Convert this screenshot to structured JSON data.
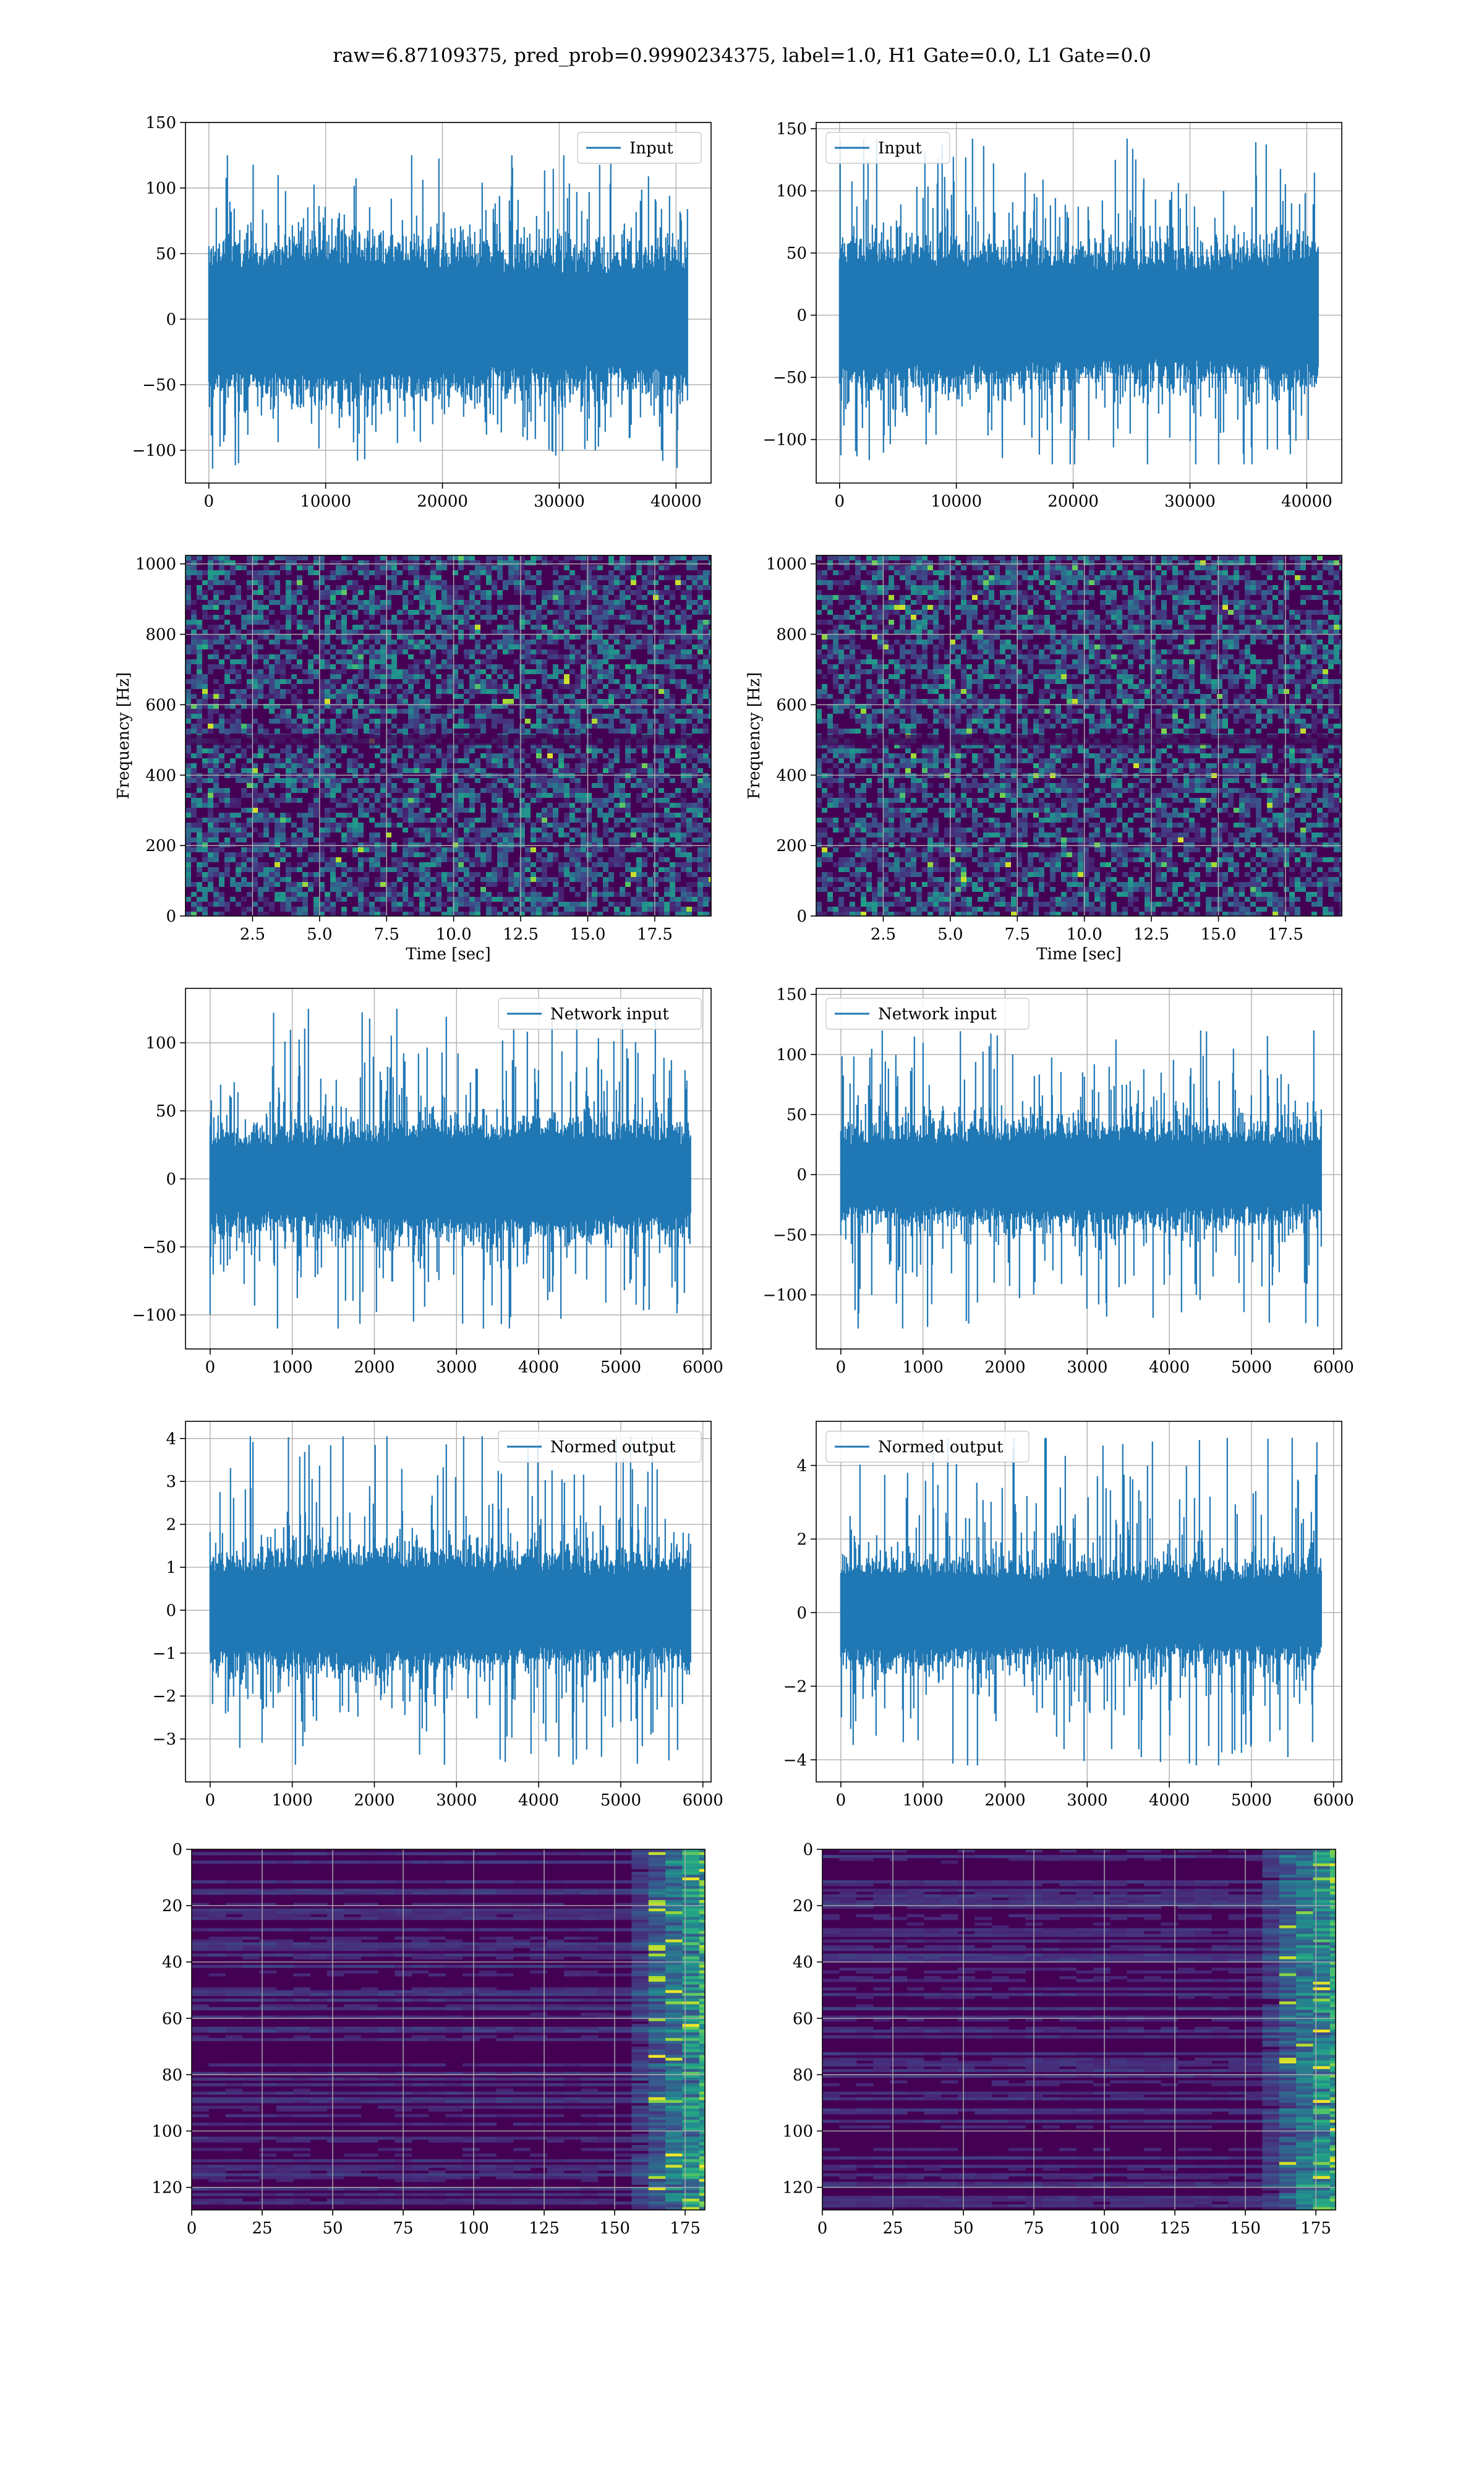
{
  "figure": {
    "suptitle": "raw=6.87109375, pred_prob=0.9990234375, label=1.0, H1 Gate=0.0, L1 Gate=0.0",
    "colors": {
      "series": "#1f77b4",
      "grid": "#b0b0b0",
      "viridis_dark": "#440154",
      "viridis_low": "#472d7b",
      "viridis_mid": "#21918c",
      "viridis_high": "#5ec962",
      "viridis_top": "#fde725"
    }
  },
  "chart_data": [
    {
      "type": "line",
      "name": "input-h1",
      "legend": "Input",
      "legend_loc": "upper right",
      "xlim": [
        -2000,
        43000
      ],
      "ylim": [
        -125,
        150
      ],
      "xticks": [
        0,
        10000,
        20000,
        30000,
        40000
      ],
      "yticks": [
        -100,
        -50,
        0,
        50,
        100,
        150
      ],
      "xlabel": "",
      "ylabel": "",
      "x_range": [
        0,
        40960
      ],
      "band": [
        -40,
        40
      ],
      "extremes": [
        -115,
        125
      ],
      "grid": true
    },
    {
      "type": "line",
      "name": "input-l1",
      "legend": "Input",
      "legend_loc": "upper left",
      "xlim": [
        -2000,
        43000
      ],
      "ylim": [
        -135,
        155
      ],
      "xticks": [
        0,
        10000,
        20000,
        30000,
        40000
      ],
      "yticks": [
        -100,
        -50,
        0,
        50,
        100,
        150
      ],
      "xlabel": "",
      "ylabel": "",
      "x_range": [
        0,
        40960
      ],
      "band": [
        -40,
        40
      ],
      "extremes": [
        -120,
        142
      ],
      "grid": true
    },
    {
      "type": "heatmap",
      "name": "spectrogram-h1",
      "kind": "spectrogram",
      "xlim": [
        0,
        19.6
      ],
      "ylim": [
        0,
        1024
      ],
      "xticks": [
        2.5,
        5.0,
        7.5,
        10.0,
        12.5,
        15.0,
        17.5
      ],
      "yticks": [
        0,
        200,
        400,
        600,
        800,
        1000
      ],
      "xlabel": "Time [sec]",
      "ylabel": "Frequency [Hz]",
      "colormap": "viridis",
      "grid": true
    },
    {
      "type": "heatmap",
      "name": "spectrogram-l1",
      "kind": "spectrogram",
      "xlim": [
        0,
        19.6
      ],
      "ylim": [
        0,
        1024
      ],
      "xticks": [
        2.5,
        5.0,
        7.5,
        10.0,
        12.5,
        15.0,
        17.5
      ],
      "yticks": [
        0,
        200,
        400,
        600,
        800,
        1000
      ],
      "xlabel": "Time [sec]",
      "ylabel": "Frequency [Hz]",
      "colormap": "viridis",
      "grid": true
    },
    {
      "type": "line",
      "name": "network-input-h1",
      "legend": "Network input",
      "legend_loc": "upper right",
      "xlim": [
        -300,
        6100
      ],
      "ylim": [
        -125,
        140
      ],
      "xticks": [
        0,
        1000,
        2000,
        3000,
        4000,
        5000,
        6000
      ],
      "yticks": [
        -100,
        -50,
        0,
        50,
        100
      ],
      "xlabel": "",
      "ylabel": "",
      "x_range": [
        0,
        5850
      ],
      "band": [
        -28,
        28
      ],
      "extremes": [
        -110,
        125
      ],
      "grid": true
    },
    {
      "type": "line",
      "name": "network-input-l1",
      "legend": "Network input",
      "legend_loc": "upper left",
      "xlim": [
        -300,
        6100
      ],
      "ylim": [
        -145,
        155
      ],
      "xticks": [
        0,
        1000,
        2000,
        3000,
        4000,
        5000,
        6000
      ],
      "yticks": [
        -100,
        -50,
        0,
        50,
        100,
        150
      ],
      "xlabel": "",
      "ylabel": "",
      "x_range": [
        0,
        5850
      ],
      "band": [
        -28,
        28
      ],
      "extremes": [
        -128,
        120
      ],
      "grid": true
    },
    {
      "type": "line",
      "name": "normed-output-h1",
      "legend": "Normed output",
      "legend_loc": "upper right",
      "xlim": [
        -300,
        6100
      ],
      "ylim": [
        -4.0,
        4.4
      ],
      "xticks": [
        0,
        1000,
        2000,
        3000,
        4000,
        5000,
        6000
      ],
      "yticks": [
        -3,
        -2,
        -1,
        0,
        1,
        2,
        3,
        4
      ],
      "xlabel": "",
      "ylabel": "",
      "x_range": [
        0,
        5850
      ],
      "band": [
        -0.95,
        0.95
      ],
      "extremes": [
        -3.6,
        4.05
      ],
      "grid": true
    },
    {
      "type": "line",
      "name": "normed-output-l1",
      "legend": "Normed output",
      "legend_loc": "upper left",
      "xlim": [
        -300,
        6100
      ],
      "ylim": [
        -4.6,
        5.2
      ],
      "xticks": [
        0,
        1000,
        2000,
        3000,
        4000,
        5000,
        6000
      ],
      "yticks": [
        -4,
        -2,
        0,
        2,
        4
      ],
      "xlabel": "",
      "ylabel": "",
      "x_range": [
        0,
        5850
      ],
      "band": [
        -0.95,
        0.95
      ],
      "extremes": [
        -4.15,
        4.75
      ],
      "grid": true
    },
    {
      "type": "heatmap",
      "name": "feature-map-h1",
      "kind": "featuremap",
      "xlim": [
        0,
        182
      ],
      "ylim": [
        128,
        0
      ],
      "xticks": [
        0,
        25,
        50,
        75,
        100,
        125,
        150,
        175
      ],
      "yticks": [
        0,
        20,
        40,
        60,
        80,
        100,
        120
      ],
      "xlabel": "",
      "ylabel": "",
      "colormap": "viridis",
      "grid": true
    },
    {
      "type": "heatmap",
      "name": "feature-map-l1",
      "kind": "featuremap",
      "xlim": [
        0,
        182
      ],
      "ylim": [
        128,
        0
      ],
      "xticks": [
        0,
        25,
        50,
        75,
        100,
        125,
        150,
        175
      ],
      "yticks": [
        0,
        20,
        40,
        60,
        80,
        100,
        120
      ],
      "xlabel": "",
      "ylabel": "",
      "colormap": "viridis",
      "grid": true
    }
  ]
}
